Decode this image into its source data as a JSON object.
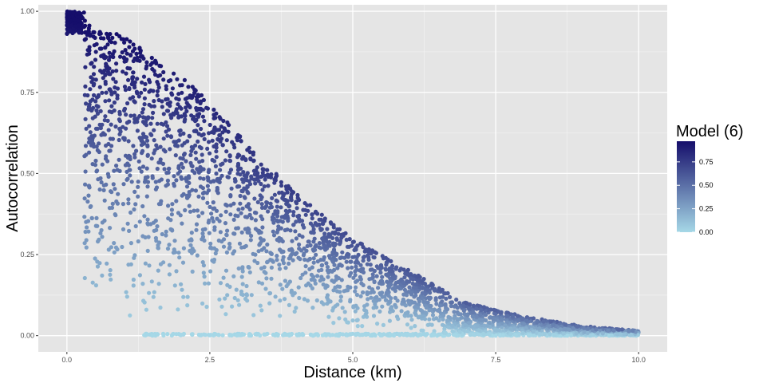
{
  "chart_data": {
    "type": "scatter",
    "title": "",
    "xlabel": "Distance (km)",
    "ylabel": "Autocorrelation",
    "xlim": [
      -0.5,
      10.5
    ],
    "ylim": [
      -0.05,
      1.02
    ],
    "x_ticks": [
      0.0,
      2.5,
      5.0,
      7.5,
      10.0
    ],
    "x_tick_labels": [
      "0.0",
      "2.5",
      "5.0",
      "7.5",
      "10.0"
    ],
    "y_ticks": [
      0.0,
      0.25,
      0.5,
      0.75,
      1.0
    ],
    "y_tick_labels": [
      "0.00",
      "0.25",
      "0.50",
      "0.75",
      "1.00"
    ],
    "grid": true,
    "panel_background": "#e5e5e5",
    "legend": {
      "title": "Model (6)",
      "placement": "right",
      "type": "colorbar",
      "range": [
        0.0,
        0.97
      ],
      "breaks": [
        0.0,
        0.25,
        0.5,
        0.75
      ],
      "break_labels": [
        "0.00",
        "0.25",
        "0.50",
        "0.75"
      ],
      "color_low": "#a6d8e7",
      "color_high": "#150e6b"
    },
    "color_variable_note_range": [
      0.0,
      1.0
    ],
    "point_count": 3400,
    "distribution": {
      "x_range": [
        0.0,
        10.0
      ],
      "y_range": [
        0.0,
        1.0
      ],
      "upper_envelope": [
        [
          0.0,
          1.0
        ],
        [
          1.0,
          0.92
        ],
        [
          2.0,
          0.8
        ],
        [
          2.5,
          0.72
        ],
        [
          3.0,
          0.62
        ],
        [
          4.0,
          0.44
        ],
        [
          5.0,
          0.3
        ],
        [
          6.0,
          0.2
        ],
        [
          7.0,
          0.1
        ],
        [
          8.0,
          0.06
        ],
        [
          9.0,
          0.03
        ],
        [
          10.0,
          0.015
        ]
      ],
      "zero_band_x_range": [
        1.35,
        10.0
      ]
    }
  }
}
